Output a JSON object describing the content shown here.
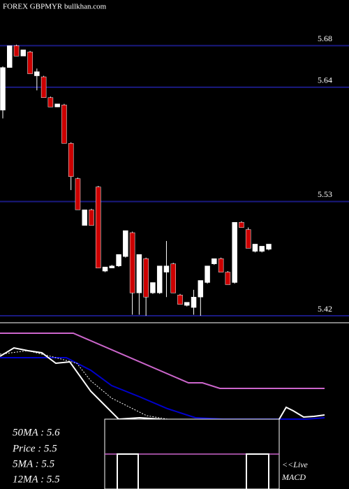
{
  "chart_data": {
    "type": "candlestick",
    "title": "FOREX  GBPMYR bullkhan.com",
    "open": [
      5.618,
      5.659,
      5.68,
      5.67,
      5.674,
      5.651,
      5.65,
      5.63,
      5.621,
      5.623,
      5.586,
      5.552,
      5.507,
      5.522,
      5.544,
      5.463,
      5.466,
      5.468,
      5.477,
      5.5,
      5.442,
      5.475,
      5.442,
      5.442,
      5.462,
      5.47,
      5.44,
      5.43,
      5.428,
      5.438,
      5.452,
      5.47,
      5.475,
      5.462,
      5.452,
      5.51,
      5.503,
      5.482,
      5.482,
      5.484
    ],
    "high": [
      5.66,
      5.68,
      5.681,
      5.676,
      5.675,
      5.658,
      5.651,
      5.631,
      5.624,
      5.624,
      5.587,
      5.553,
      5.522,
      5.523,
      5.545,
      5.467,
      5.469,
      5.479,
      5.502,
      5.501,
      5.479,
      5.476,
      5.452,
      5.468,
      5.492,
      5.471,
      5.441,
      5.433,
      5.445,
      5.454,
      5.468,
      5.475,
      5.476,
      5.463,
      5.51,
      5.511,
      5.505,
      5.489,
      5.487,
      5.489
    ],
    "low": [
      5.61,
      5.659,
      5.67,
      5.67,
      5.653,
      5.637,
      5.63,
      5.621,
      5.621,
      5.586,
      5.541,
      5.522,
      5.507,
      5.507,
      5.466,
      5.462,
      5.466,
      5.467,
      5.476,
      5.421,
      5.421,
      5.42,
      5.441,
      5.441,
      5.438,
      5.442,
      5.431,
      5.429,
      5.421,
      5.42,
      5.451,
      5.469,
      5.462,
      5.45,
      5.451,
      5.505,
      5.485,
      5.481,
      5.481,
      5.483
    ],
    "close": [
      5.659,
      5.68,
      5.67,
      5.676,
      5.653,
      5.655,
      5.63,
      5.621,
      5.624,
      5.586,
      5.554,
      5.522,
      5.522,
      5.507,
      5.466,
      5.467,
      5.468,
      5.479,
      5.502,
      5.442,
      5.479,
      5.438,
      5.452,
      5.468,
      5.468,
      5.442,
      5.431,
      5.433,
      5.438,
      5.454,
      5.468,
      5.475,
      5.462,
      5.45,
      5.51,
      5.505,
      5.485,
      5.489,
      5.487,
      5.489
    ],
    "up_color": "#ffffff",
    "down_color": "#cc0000",
    "ylim": [
      5.418,
      5.724
    ],
    "yticks": [
      5.68,
      5.64,
      5.53,
      5.42
    ],
    "grid": true,
    "ma_labels": [
      "50MA : 5.6",
      "Price   : 5.5",
      "5MA   : 5.5",
      "12MA : 5.5"
    ],
    "live_label": "<<Live",
    "macd_label": "MACD"
  }
}
